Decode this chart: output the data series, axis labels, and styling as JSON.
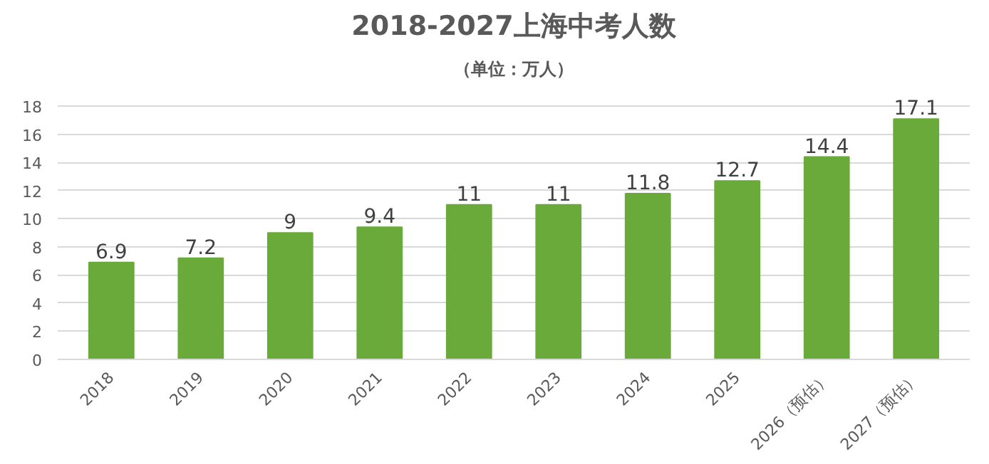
{
  "chart_data": {
    "type": "bar",
    "title": "2018-2027上海中考人数",
    "subtitle": "（单位：万人）",
    "categories": [
      "2018",
      "2019",
      "2020",
      "2021",
      "2022",
      "2023",
      "2024",
      "2025",
      "2026（预估）",
      "2027（预估）"
    ],
    "values": [
      6.9,
      7.2,
      9,
      9.4,
      11,
      11,
      11.8,
      12.7,
      14.4,
      17.1
    ],
    "color": "#6aaa3a",
    "ylim": [
      0,
      18
    ],
    "yticks": [
      0,
      2,
      4,
      6,
      8,
      10,
      12,
      14,
      16,
      18
    ],
    "grid": "y",
    "data_labels": true
  }
}
